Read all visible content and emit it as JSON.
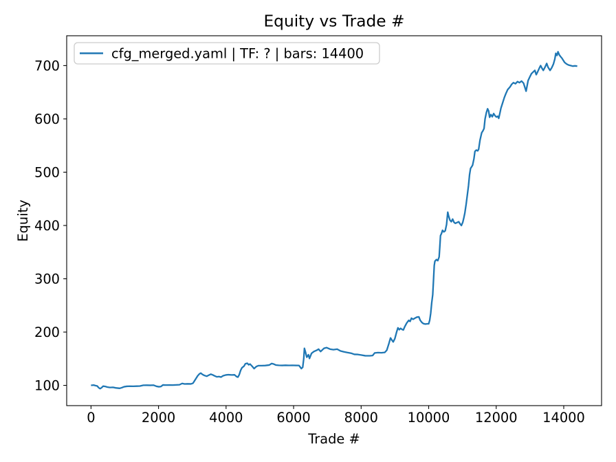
{
  "title": "Equity vs Trade #",
  "axes": {
    "xlabel": "Trade #",
    "ylabel": "Equity"
  },
  "legend": {
    "label": "cfg_merged.yaml | TF: ? | bars: 14400",
    "position": "upper left"
  },
  "colors": {
    "line": "#1f77b4",
    "spine": "#000000",
    "legend_border": "#cccccc",
    "legend_fill": "rgba(255,255,255,0.8)",
    "background": "#ffffff"
  },
  "chart_data": {
    "type": "line",
    "title": "Equity vs Trade #",
    "xlabel": "Trade #",
    "ylabel": "Equity",
    "xlim": [
      -720,
      15120
    ],
    "ylim": [
      62,
      756
    ],
    "x_ticks": [
      0,
      2000,
      4000,
      6000,
      8000,
      10000,
      12000,
      14000
    ],
    "y_ticks": [
      100,
      200,
      300,
      400,
      500,
      600,
      700
    ],
    "grid": false,
    "legend_position": "upper left",
    "series": [
      {
        "name": "cfg_merged.yaml | TF: ? | bars: 14400",
        "color": "#1f77b4",
        "points": [
          [
            0,
            100
          ],
          [
            80,
            100.5
          ],
          [
            130,
            99.6
          ],
          [
            180,
            99
          ],
          [
            230,
            95.5
          ],
          [
            270,
            93.8
          ],
          [
            310,
            95.5
          ],
          [
            360,
            98.5
          ],
          [
            420,
            98
          ],
          [
            480,
            96.8
          ],
          [
            560,
            96
          ],
          [
            650,
            96.3
          ],
          [
            730,
            95.3
          ],
          [
            800,
            94.8
          ],
          [
            850,
            94.5
          ],
          [
            910,
            95.6
          ],
          [
            980,
            97.4
          ],
          [
            1060,
            98.2
          ],
          [
            1150,
            98.4
          ],
          [
            1250,
            98.3
          ],
          [
            1350,
            98.5
          ],
          [
            1450,
            98.8
          ],
          [
            1550,
            100.2
          ],
          [
            1650,
            100.3
          ],
          [
            1750,
            100.1
          ],
          [
            1850,
            100.4
          ],
          [
            1940,
            98.2
          ],
          [
            2010,
            97.4
          ],
          [
            2070,
            97.8
          ],
          [
            2130,
            100.8
          ],
          [
            2220,
            100.5
          ],
          [
            2320,
            100.7
          ],
          [
            2420,
            100.5
          ],
          [
            2520,
            100.9
          ],
          [
            2620,
            101.2
          ],
          [
            2700,
            103.6
          ],
          [
            2770,
            102.6
          ],
          [
            2860,
            102.9
          ],
          [
            2960,
            102.7
          ],
          [
            3020,
            104
          ],
          [
            3060,
            108
          ],
          [
            3110,
            113
          ],
          [
            3160,
            118
          ],
          [
            3210,
            121.5
          ],
          [
            3250,
            123
          ],
          [
            3300,
            120.5
          ],
          [
            3360,
            118.5
          ],
          [
            3430,
            117.2
          ],
          [
            3490,
            119.2
          ],
          [
            3550,
            121
          ],
          [
            3610,
            119.5
          ],
          [
            3670,
            117.5
          ],
          [
            3730,
            116
          ],
          [
            3790,
            116.5
          ],
          [
            3850,
            115.5
          ],
          [
            3910,
            118
          ],
          [
            3990,
            119.5
          ],
          [
            4070,
            120
          ],
          [
            4170,
            119.6
          ],
          [
            4250,
            119.8
          ],
          [
            4310,
            116.5
          ],
          [
            4350,
            115.5
          ],
          [
            4390,
            120
          ],
          [
            4430,
            128
          ],
          [
            4470,
            133
          ],
          [
            4530,
            136
          ],
          [
            4570,
            140.5
          ],
          [
            4630,
            141.5
          ],
          [
            4670,
            138.6
          ],
          [
            4710,
            140
          ],
          [
            4770,
            136
          ],
          [
            4830,
            131.5
          ],
          [
            4900,
            135.5
          ],
          [
            4960,
            137
          ],
          [
            5060,
            137
          ],
          [
            5160,
            137.2
          ],
          [
            5280,
            138.2
          ],
          [
            5350,
            141
          ],
          [
            5410,
            140
          ],
          [
            5480,
            138.1
          ],
          [
            5560,
            137.6
          ],
          [
            5660,
            137.4
          ],
          [
            5760,
            137.7
          ],
          [
            5860,
            137.5
          ],
          [
            5960,
            137.6
          ],
          [
            6060,
            137.4
          ],
          [
            6160,
            137.3
          ],
          [
            6230,
            131.5
          ],
          [
            6270,
            134
          ],
          [
            6300,
            150
          ],
          [
            6320,
            169.5
          ],
          [
            6350,
            163
          ],
          [
            6390,
            152.8
          ],
          [
            6440,
            157.5
          ],
          [
            6470,
            150.5
          ],
          [
            6530,
            160
          ],
          [
            6600,
            163.5
          ],
          [
            6680,
            165.7
          ],
          [
            6740,
            168
          ],
          [
            6800,
            163.5
          ],
          [
            6900,
            169.5
          ],
          [
            6980,
            170.8
          ],
          [
            7080,
            168
          ],
          [
            7180,
            167
          ],
          [
            7290,
            168
          ],
          [
            7390,
            164.5
          ],
          [
            7490,
            163
          ],
          [
            7590,
            161.6
          ],
          [
            7700,
            160.4
          ],
          [
            7800,
            158.2
          ],
          [
            7900,
            158
          ],
          [
            8000,
            157
          ],
          [
            8120,
            155.6
          ],
          [
            8260,
            155.5
          ],
          [
            8340,
            156
          ],
          [
            8400,
            160.8
          ],
          [
            8500,
            161.5
          ],
          [
            8600,
            161.2
          ],
          [
            8700,
            161.8
          ],
          [
            8760,
            166
          ],
          [
            8820,
            178
          ],
          [
            8870,
            189
          ],
          [
            8910,
            185
          ],
          [
            8950,
            181.5
          ],
          [
            9000,
            188
          ],
          [
            9050,
            200
          ],
          [
            9090,
            208
          ],
          [
            9130,
            204.5
          ],
          [
            9170,
            207
          ],
          [
            9210,
            205
          ],
          [
            9250,
            204
          ],
          [
            9290,
            210
          ],
          [
            9350,
            217
          ],
          [
            9410,
            222
          ],
          [
            9450,
            220
          ],
          [
            9490,
            226
          ],
          [
            9540,
            224
          ],
          [
            9590,
            226
          ],
          [
            9650,
            228
          ],
          [
            9710,
            228.5
          ],
          [
            9750,
            222
          ],
          [
            9800,
            218
          ],
          [
            9840,
            216
          ],
          [
            9900,
            215
          ],
          [
            9960,
            215.5
          ],
          [
            10000,
            215.5
          ],
          [
            10030,
            222
          ],
          [
            10060,
            235
          ],
          [
            10090,
            255
          ],
          [
            10120,
            270
          ],
          [
            10145,
            300
          ],
          [
            10165,
            325
          ],
          [
            10185,
            333
          ],
          [
            10230,
            336
          ],
          [
            10270,
            334
          ],
          [
            10310,
            341
          ],
          [
            10330,
            360
          ],
          [
            10350,
            381
          ],
          [
            10380,
            385
          ],
          [
            10410,
            391
          ],
          [
            10450,
            388
          ],
          [
            10490,
            390
          ],
          [
            10530,
            402
          ],
          [
            10565,
            425
          ],
          [
            10590,
            418
          ],
          [
            10630,
            410
          ],
          [
            10670,
            407
          ],
          [
            10710,
            412
          ],
          [
            10750,
            406
          ],
          [
            10790,
            404
          ],
          [
            10840,
            405.5
          ],
          [
            10890,
            407
          ],
          [
            10930,
            403
          ],
          [
            10970,
            400
          ],
          [
            11010,
            406
          ],
          [
            11040,
            414
          ],
          [
            11070,
            423
          ],
          [
            11110,
            440
          ],
          [
            11150,
            460
          ],
          [
            11180,
            475
          ],
          [
            11210,
            495
          ],
          [
            11240,
            507
          ],
          [
            11270,
            510
          ],
          [
            11300,
            513
          ],
          [
            11340,
            525
          ],
          [
            11370,
            539
          ],
          [
            11410,
            541.5
          ],
          [
            11450,
            540
          ],
          [
            11480,
            543
          ],
          [
            11520,
            560
          ],
          [
            11570,
            574
          ],
          [
            11610,
            578
          ],
          [
            11640,
            582
          ],
          [
            11670,
            600
          ],
          [
            11710,
            612
          ],
          [
            11745,
            619
          ],
          [
            11775,
            615
          ],
          [
            11805,
            603
          ],
          [
            11845,
            608
          ],
          [
            11885,
            604
          ],
          [
            11925,
            610
          ],
          [
            11965,
            606
          ],
          [
            12005,
            603.5
          ],
          [
            12045,
            605
          ],
          [
            12075,
            601
          ],
          [
            12110,
            611
          ],
          [
            12140,
            620
          ],
          [
            12180,
            628
          ],
          [
            12240,
            640
          ],
          [
            12290,
            648
          ],
          [
            12340,
            655
          ],
          [
            12410,
            660
          ],
          [
            12460,
            665
          ],
          [
            12510,
            668
          ],
          [
            12570,
            666
          ],
          [
            12630,
            670
          ],
          [
            12690,
            668
          ],
          [
            12750,
            671
          ],
          [
            12810,
            667
          ],
          [
            12855,
            658
          ],
          [
            12885,
            652
          ],
          [
            12915,
            662
          ],
          [
            12945,
            672
          ],
          [
            13005,
            680
          ],
          [
            13045,
            685
          ],
          [
            13095,
            688
          ],
          [
            13145,
            691
          ],
          [
            13185,
            683
          ],
          [
            13225,
            688
          ],
          [
            13275,
            695
          ],
          [
            13315,
            700
          ],
          [
            13355,
            695
          ],
          [
            13395,
            691
          ],
          [
            13445,
            697
          ],
          [
            13495,
            704
          ],
          [
            13535,
            697
          ],
          [
            13595,
            691
          ],
          [
            13645,
            696
          ],
          [
            13695,
            703
          ],
          [
            13735,
            712
          ],
          [
            13765,
            723
          ],
          [
            13800,
            719
          ],
          [
            13830,
            726
          ],
          [
            13870,
            720
          ],
          [
            13905,
            717
          ],
          [
            13945,
            714
          ],
          [
            13985,
            710
          ],
          [
            14025,
            706
          ],
          [
            14085,
            703
          ],
          [
            14145,
            701
          ],
          [
            14205,
            700
          ],
          [
            14265,
            699
          ],
          [
            14330,
            699.5
          ],
          [
            14400,
            699
          ]
        ]
      }
    ]
  }
}
